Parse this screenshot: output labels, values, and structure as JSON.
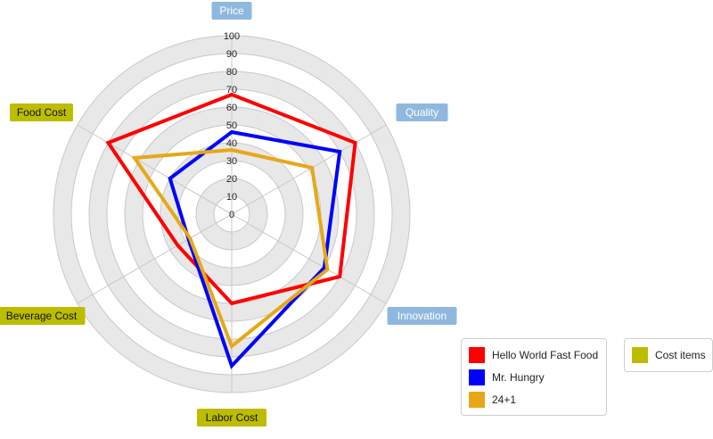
{
  "chart_data": {
    "type": "radar",
    "axes": [
      {
        "name": "Price",
        "group": "main"
      },
      {
        "name": "Quality",
        "group": "main"
      },
      {
        "name": "Innovation",
        "group": "main"
      },
      {
        "name": "Labor Cost",
        "group": "cost"
      },
      {
        "name": "Beverage Cost",
        "group": "cost"
      },
      {
        "name": "Food Cost",
        "group": "cost"
      }
    ],
    "r_ticks": [
      "0",
      "10",
      "20",
      "30",
      "40",
      "50",
      "60",
      "70",
      "80",
      "90",
      "100"
    ],
    "r_max": 100,
    "series": [
      {
        "name": "Hello World Fast Food",
        "color": "#ff0000",
        "values": [
          67,
          80,
          70,
          50,
          35,
          80
        ]
      },
      {
        "name": "Mr. Hungry",
        "color": "#0000ff",
        "values": [
          46,
          70,
          60,
          85,
          28,
          40
        ]
      },
      {
        "name": "24+1",
        "color": "#e6a817",
        "values": [
          36,
          52,
          62,
          74,
          27,
          63
        ]
      }
    ],
    "legend_extra": {
      "name": "Cost items",
      "color": "#bcbc00"
    },
    "colors": {
      "main_label_bg": "#8fb8de",
      "cost_label_bg": "#bcbc00",
      "ring_band": "#e8e8e8",
      "ring_line": "#c8c8c8"
    }
  }
}
